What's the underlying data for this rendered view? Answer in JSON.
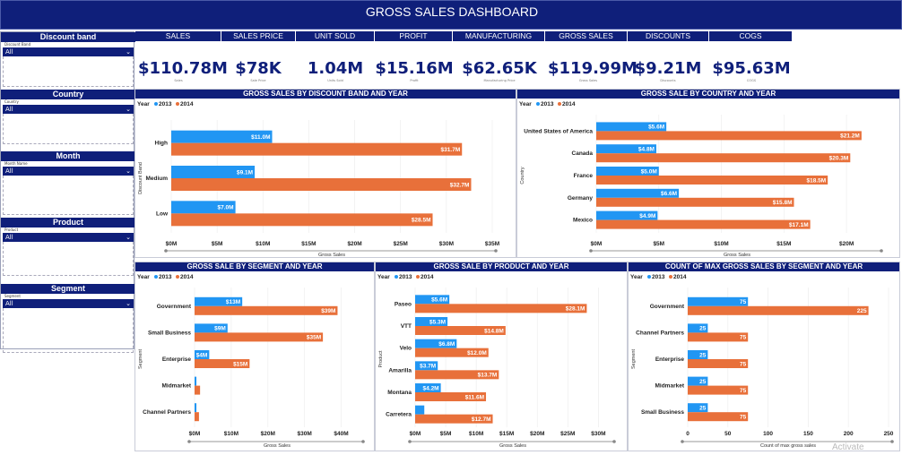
{
  "title": "GROSS SALES DASHBOARD",
  "filters": [
    {
      "label": "Discount band",
      "sub": "Discount Band",
      "value": "All"
    },
    {
      "label": "Country",
      "sub": "Country",
      "value": "All"
    },
    {
      "label": "Month",
      "sub": "Month Name",
      "value": "All"
    },
    {
      "label": "Product",
      "sub": "Product",
      "value": "All"
    },
    {
      "label": "Segment",
      "sub": "Segment",
      "value": "All"
    }
  ],
  "kpis": [
    {
      "header": "SALES",
      "value": "$110.78M",
      "label": "Sales"
    },
    {
      "header": "SALES PRICE",
      "value": "$78K",
      "label": "Sale Price"
    },
    {
      "header": "UNIT SOLD",
      "value": "1.04M",
      "label": "Units Sold"
    },
    {
      "header": "PROFIT",
      "value": "$15.16M",
      "label": "Profit"
    },
    {
      "header": "MANUFACTURING PRICE",
      "value": "$62.65K",
      "label": "Manufacturing Price"
    },
    {
      "header": "GROSS SALES",
      "value": "$119.99M",
      "label": "Gross Sales"
    },
    {
      "header": "DISCOUNTS",
      "value": "$9.21M",
      "label": "Discounts"
    },
    {
      "header": "COGS",
      "value": "$95.63M",
      "label": "COGS"
    }
  ],
  "colors": {
    "navy": "#0f1f7a",
    "y2013": "#2196f3",
    "y2014": "#e8703a"
  },
  "watermark": "Activate",
  "chart_data": [
    {
      "type": "bar",
      "title": "GROSS SALES BY DISCOUNT BAND AND YEAR",
      "legend_title": "Year",
      "series_names": [
        "2013",
        "2014"
      ],
      "categories": [
        "High",
        "Medium",
        "Low"
      ],
      "series": [
        {
          "name": "2013",
          "values": [
            11.0,
            9.1,
            7.0
          ],
          "labels": [
            "$11.0M",
            "$9.1M",
            "$7.0M"
          ]
        },
        {
          "name": "2014",
          "values": [
            31.7,
            32.7,
            28.5
          ],
          "labels": [
            "$31.7M",
            "$32.7M",
            "$28.5M"
          ]
        }
      ],
      "xlim": [
        0,
        35
      ],
      "xticks": [
        "$0M",
        "$5M",
        "$10M",
        "$15M",
        "$20M",
        "$25M",
        "$30M",
        "$35M"
      ],
      "xlabel": "Gross Sales",
      "ylabel": "Discount Band"
    },
    {
      "type": "bar",
      "title": "GROSS SALE BY COUNTRY AND YEAR",
      "legend_title": "Year",
      "series_names": [
        "2013",
        "2014"
      ],
      "categories": [
        "United States of America",
        "Canada",
        "France",
        "Germany",
        "Mexico"
      ],
      "series": [
        {
          "name": "2013",
          "values": [
            5.6,
            4.8,
            5.0,
            6.6,
            4.9
          ],
          "labels": [
            "$5.6M",
            "$4.8M",
            "$5.0M",
            "$6.6M",
            "$4.9M"
          ]
        },
        {
          "name": "2014",
          "values": [
            21.2,
            20.3,
            18.5,
            15.8,
            17.1
          ],
          "labels": [
            "$21.2M",
            "$20.3M",
            "$18.5M",
            "$15.8M",
            "$17.1M"
          ]
        }
      ],
      "xlim": [
        0,
        22.5
      ],
      "xticks": [
        "$0M",
        "$5M",
        "$10M",
        "$15M",
        "$20M"
      ],
      "xlabel": "Gross Sales",
      "ylabel": "Country"
    },
    {
      "type": "bar",
      "title": "GROSS SALE BY SEGMENT AND YEAR",
      "legend_title": "Year",
      "series_names": [
        "2013",
        "2014"
      ],
      "categories": [
        "Government",
        "Small Business",
        "Enterprise",
        "Midmarket",
        "Channel Partners"
      ],
      "series": [
        {
          "name": "2013",
          "values": [
            13,
            9,
            4,
            0.5,
            0.5
          ],
          "labels": [
            "$13M",
            "$9M",
            "$4M",
            "",
            ""
          ]
        },
        {
          "name": "2014",
          "values": [
            39,
            35,
            15,
            1.5,
            1.2
          ],
          "labels": [
            "$39M",
            "$35M",
            "$15M",
            "",
            ""
          ]
        }
      ],
      "xlim": [
        0,
        45
      ],
      "xticks": [
        "$0M",
        "$10M",
        "$20M",
        "$30M",
        "$40M"
      ],
      "xlabel": "Gross Sales",
      "ylabel": "Segment"
    },
    {
      "type": "bar",
      "title": "GROSS SALE BY PRODUCT AND YEAR",
      "legend_title": "Year",
      "series_names": [
        "2013",
        "2014"
      ],
      "categories": [
        "Paseo",
        "VTT",
        "Velo",
        "Amarilla",
        "Montana",
        "Carretera"
      ],
      "series": [
        {
          "name": "2013",
          "values": [
            5.6,
            5.3,
            6.8,
            3.7,
            4.2,
            1.5
          ],
          "labels": [
            "$5.6M",
            "$5.3M",
            "$6.8M",
            "$3.7M",
            "$4.2M",
            ""
          ]
        },
        {
          "name": "2014",
          "values": [
            28.1,
            14.8,
            12.0,
            13.7,
            11.6,
            12.7
          ],
          "labels": [
            "$28.1M",
            "$14.8M",
            "$12.0M",
            "$13.7M",
            "$11.6M",
            "$12.7M"
          ]
        }
      ],
      "xlim": [
        0,
        32
      ],
      "xticks": [
        "$0M",
        "$5M",
        "$10M",
        "$15M",
        "$20M",
        "$25M",
        "$30M"
      ],
      "xlabel": "Gross Sales",
      "ylabel": "Product"
    },
    {
      "type": "bar",
      "title": "COUNT OF MAX GROSS SALES BY SEGMENT AND YEAR",
      "legend_title": "Year",
      "series_names": [
        "2013",
        "2014"
      ],
      "categories": [
        "Government",
        "Channel Partners",
        "Enterprise",
        "Midmarket",
        "Small Business"
      ],
      "series": [
        {
          "name": "2013",
          "values": [
            75,
            25,
            25,
            25,
            25
          ],
          "labels": [
            "75",
            "25",
            "25",
            "25",
            "25"
          ]
        },
        {
          "name": "2014",
          "values": [
            225,
            75,
            75,
            75,
            75
          ],
          "labels": [
            "225",
            "75",
            "75",
            "75",
            "75"
          ]
        }
      ],
      "xlim": [
        0,
        250
      ],
      "xticks": [
        "0",
        "50",
        "100",
        "150",
        "200",
        "250"
      ],
      "xlabel": "Count of max gross sales",
      "ylabel": "Segment"
    }
  ]
}
